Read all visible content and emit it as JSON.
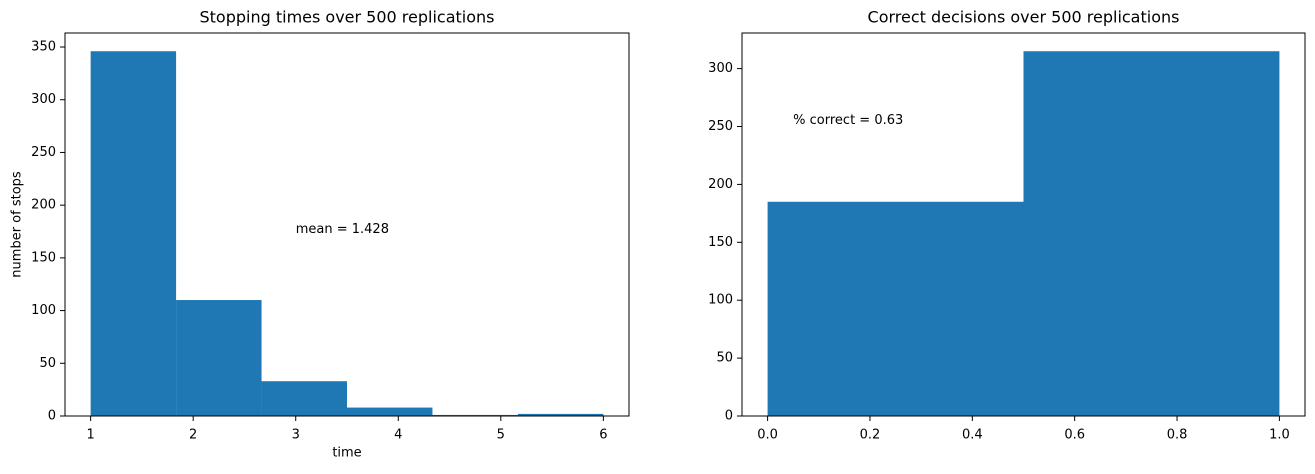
{
  "chart_data": [
    {
      "type": "histogram",
      "title": "Stopping times over 500 replications",
      "x_label": "time",
      "y_label": "number of stops",
      "bins": [
        1,
        1.8333,
        2.6667,
        3.5,
        4.3333,
        5.1667,
        6
      ],
      "values": [
        346,
        110,
        33,
        8,
        1,
        2
      ],
      "color": "#1f77b4",
      "xlim": [
        0.75,
        6.25
      ],
      "ylim": [
        0,
        363.3
      ],
      "xticks": [
        1,
        2,
        3,
        4,
        5,
        6
      ],
      "yticks": [
        0,
        50,
        100,
        150,
        200,
        250,
        300,
        350
      ],
      "annotations": [
        {
          "text": "mean = 1.428",
          "x": 3,
          "y": 177
        }
      ]
    },
    {
      "type": "histogram",
      "title": "Correct decisions over 500 replications",
      "bins": [
        0,
        0.5,
        1
      ],
      "values": [
        185,
        315
      ],
      "color": "#1f77b4",
      "xlim": [
        -0.05,
        1.05
      ],
      "ylim": [
        0,
        330.75
      ],
      "xticks": [
        {
          "value": 0,
          "label": "0.0"
        },
        0.2,
        0.4,
        0.6,
        0.8,
        {
          "value": 1,
          "label": "1.0"
        }
      ],
      "yticks": [
        0,
        50,
        100,
        150,
        200,
        250,
        300
      ],
      "annotations": [
        {
          "text": "% correct = 0.63",
          "x": 0.05,
          "y": 255
        }
      ]
    }
  ]
}
